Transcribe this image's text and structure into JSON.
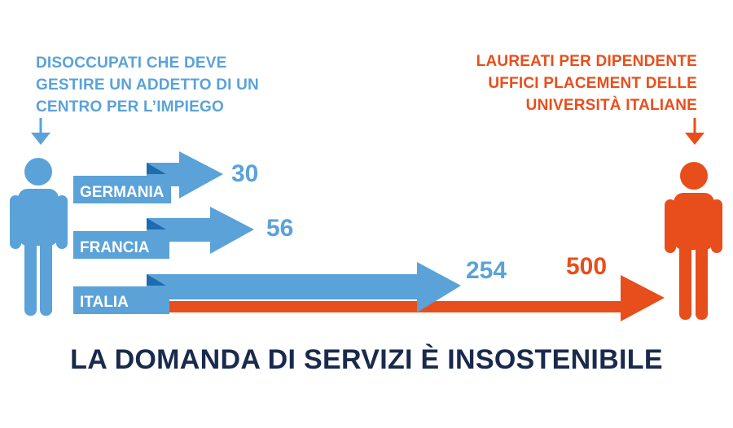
{
  "left_caption": {
    "lines": [
      "DISOCCUPATI CHE DEVE",
      "GESTIRE UN ADDETTO DI UN",
      "CENTRO PER L’IMPIEGO"
    ]
  },
  "right_caption": {
    "lines": [
      "LAUREATI PER DIPENDENTE",
      "UFFICI PLACEMENT DELLE",
      "UNIVERSITÀ ITALIANE"
    ]
  },
  "rows": [
    {
      "country": "GERMANIA",
      "value": "30"
    },
    {
      "country": "FRANCIA",
      "value": "56"
    },
    {
      "country": "ITALIA",
      "value": "254",
      "second_value": "500"
    }
  ],
  "headline": "LA DOMANDA DI SERVIZI È INSOSTENIBILE",
  "colors": {
    "blue": "#5aa2d8",
    "blue_dark": "#1f6bb0",
    "orange": "#e84e1b",
    "navy": "#1a2a4c"
  },
  "icons": {
    "left": "person-icon",
    "right": "person-icon",
    "pointer": "arrow-down-icon"
  }
}
